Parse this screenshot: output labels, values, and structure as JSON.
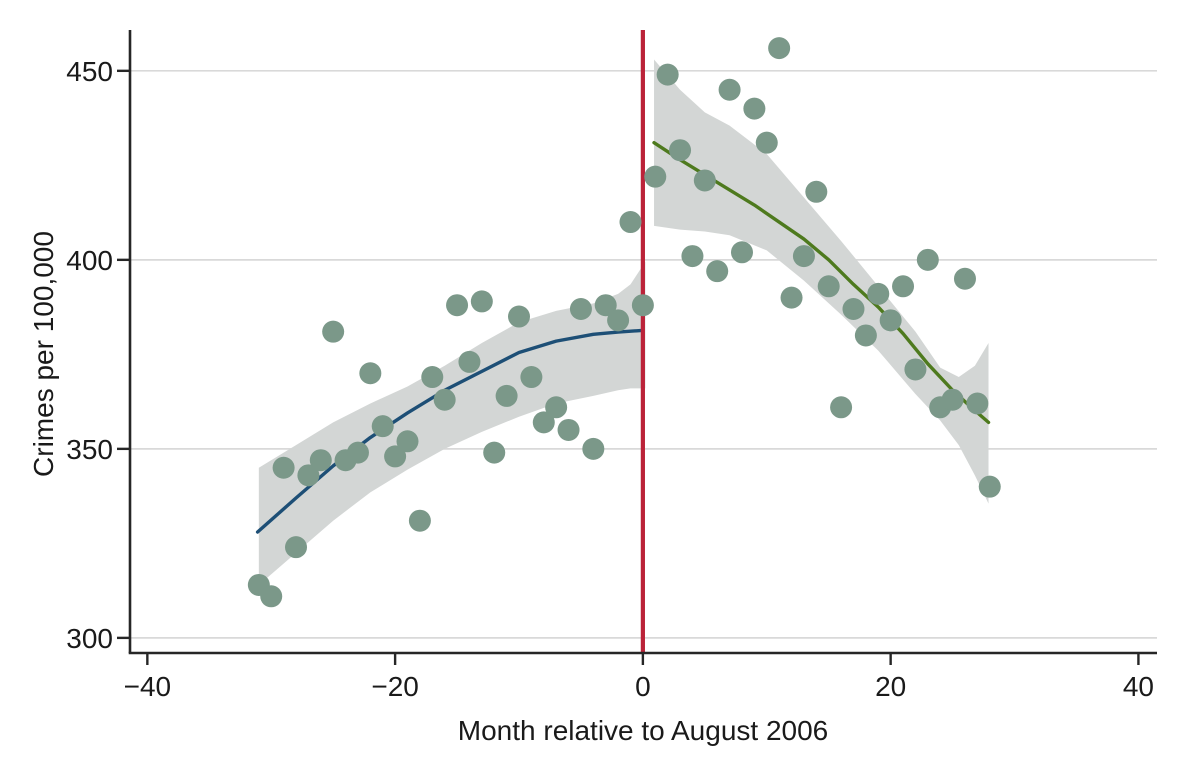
{
  "colors": {
    "background": "#ffffff",
    "band": "#d3d6d5",
    "grid": "#d9d9d9",
    "axis": "#262626",
    "text": "#1a1a1a",
    "scatter": "#7b9889",
    "pre_fit_line": "#1d4f76",
    "post_fit_line": "#4e7a1e",
    "cutoff_line": "#bb2339"
  },
  "chart_data": {
    "type": "scatter",
    "title": "",
    "xlabel": "Month relative to August 2006",
    "ylabel": "Crimes per 100,000",
    "xlim": [
      -41.4,
      41.5
    ],
    "ylim": [
      296,
      460.8
    ],
    "x_ticks": [
      -40,
      -20,
      0,
      20,
      40
    ],
    "y_ticks": [
      300,
      350,
      400,
      450
    ],
    "grid": "horizontal-only",
    "legend": "none",
    "cutoff": {
      "x": 0,
      "style": "vertical-line"
    },
    "series": [
      {
        "name": "crimes-pre-cutoff",
        "type": "scatter",
        "points": [
          [
            -31,
            314
          ],
          [
            -30,
            311
          ],
          [
            -29,
            345
          ],
          [
            -28,
            324
          ],
          [
            -27,
            343
          ],
          [
            -26,
            347
          ],
          [
            -25,
            381
          ],
          [
            -24,
            347
          ],
          [
            -23,
            349
          ],
          [
            -22,
            370
          ],
          [
            -21,
            356
          ],
          [
            -20,
            348
          ],
          [
            -19,
            352
          ],
          [
            -18,
            331
          ],
          [
            -17,
            369
          ],
          [
            -16,
            363
          ],
          [
            -15,
            388
          ],
          [
            -14,
            373
          ],
          [
            -13,
            389
          ],
          [
            -12,
            349
          ],
          [
            -11,
            364
          ],
          [
            -10,
            385
          ],
          [
            -9,
            369
          ],
          [
            -8,
            357
          ],
          [
            -7,
            361
          ],
          [
            -6,
            355
          ],
          [
            -5,
            387
          ],
          [
            -4,
            350
          ],
          [
            -3,
            388
          ],
          [
            -2,
            384
          ],
          [
            -1,
            410
          ],
          [
            0,
            388
          ]
        ]
      },
      {
        "name": "crimes-post-cutoff",
        "type": "scatter",
        "points": [
          [
            1,
            422
          ],
          [
            2,
            449
          ],
          [
            3,
            429
          ],
          [
            4,
            401
          ],
          [
            5,
            421
          ],
          [
            6,
            397
          ],
          [
            7,
            445
          ],
          [
            8,
            402
          ],
          [
            9,
            440
          ],
          [
            10,
            431
          ],
          [
            11,
            456
          ],
          [
            12,
            390
          ],
          [
            13,
            401
          ],
          [
            14,
            418
          ],
          [
            15,
            393
          ],
          [
            16,
            361
          ],
          [
            17,
            387
          ],
          [
            18,
            380
          ],
          [
            19,
            391
          ],
          [
            20,
            384
          ],
          [
            21,
            393
          ],
          [
            22,
            371
          ],
          [
            23,
            400
          ],
          [
            24,
            361
          ],
          [
            25,
            363
          ],
          [
            26,
            395
          ],
          [
            27,
            362
          ],
          [
            28,
            340
          ]
        ]
      },
      {
        "name": "pre-cutoff-fit",
        "type": "line",
        "points": [
          [
            -31.1,
            328
          ],
          [
            -28,
            337
          ],
          [
            -25,
            345.5
          ],
          [
            -22,
            353
          ],
          [
            -19,
            359.5
          ],
          [
            -16,
            365.5
          ],
          [
            -13,
            370.5
          ],
          [
            -10,
            375.5
          ],
          [
            -7,
            378.5
          ],
          [
            -4,
            380.3
          ],
          [
            -2,
            380.9
          ],
          [
            -0.2,
            381.3
          ]
        ]
      },
      {
        "name": "post-cutoff-fit",
        "type": "line",
        "points": [
          [
            0.9,
            431
          ],
          [
            3,
            426.5
          ],
          [
            5,
            422.5
          ],
          [
            7,
            418.5
          ],
          [
            9,
            414.5
          ],
          [
            11,
            410
          ],
          [
            13,
            405.5
          ],
          [
            15,
            400
          ],
          [
            17,
            393.5
          ],
          [
            19,
            387.5
          ],
          [
            21,
            380.5
          ],
          [
            23,
            372.5
          ],
          [
            25,
            365.5
          ],
          [
            26.5,
            361
          ],
          [
            27.9,
            357
          ]
        ]
      },
      {
        "name": "pre-cutoff-ci-band",
        "type": "band",
        "points_x_upper_lower": [
          [
            -31,
            345,
            314
          ],
          [
            -28,
            351,
            322.5
          ],
          [
            -25,
            357,
            331
          ],
          [
            -22,
            362,
            338.5
          ],
          [
            -19,
            366.5,
            344.5
          ],
          [
            -16,
            372,
            350
          ],
          [
            -13,
            378,
            354.5
          ],
          [
            -10,
            383.5,
            358.5
          ],
          [
            -7,
            386.5,
            362
          ],
          [
            -4,
            388.5,
            364
          ],
          [
            -2,
            391,
            365.5
          ],
          [
            -1,
            393.5,
            366
          ],
          [
            0.2,
            399.5,
            366
          ]
        ]
      },
      {
        "name": "post-cutoff-ci-band",
        "type": "band",
        "points_x_upper_lower": [
          [
            0.9,
            453,
            409
          ],
          [
            3,
            445,
            408
          ],
          [
            5,
            439,
            407.5
          ],
          [
            7,
            435.5,
            406.5
          ],
          [
            10,
            428,
            402.5
          ],
          [
            13,
            416.5,
            394.5
          ],
          [
            16,
            405,
            385.5
          ],
          [
            19,
            393,
            376
          ],
          [
            22,
            381,
            364.5
          ],
          [
            24,
            371.5,
            357.5
          ],
          [
            25.5,
            369,
            351
          ],
          [
            26.8,
            372,
            343
          ],
          [
            27.9,
            378,
            335.5
          ]
        ]
      }
    ]
  }
}
